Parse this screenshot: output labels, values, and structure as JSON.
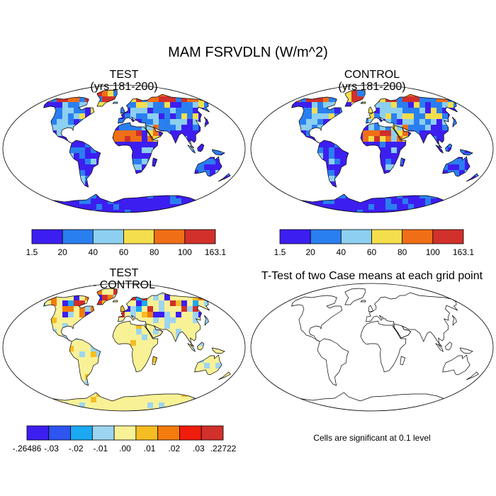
{
  "title": "MAM FSRVDLN (W/m^2)",
  "panels": [
    {
      "id": "test",
      "title": "TEST",
      "subtitle": "(yrs 181-200)"
    },
    {
      "id": "control",
      "title": "CONTROL",
      "subtitle": "(yrs 181-200)"
    },
    {
      "id": "diff",
      "title": "TEST",
      "subtitle": "- CONTROL"
    },
    {
      "id": "ttest",
      "title": "T-Test of two Case means at each grid point",
      "subtitle": ""
    }
  ],
  "colorbar_main": {
    "colors": [
      "#3d1ef0",
      "#2a7ff0",
      "#8ccff0",
      "#f5de4c",
      "#f06f16",
      "#d1302b"
    ],
    "labels": [
      "1.5",
      "20",
      "40",
      "60",
      "80",
      "100",
      "163.1"
    ]
  },
  "colorbar_diff": {
    "colors": [
      "#3d1ef0",
      "#2d55f0",
      "#1aa9f2",
      "#9dd5f0",
      "#f8f196",
      "#f5bd22",
      "#f37c0c",
      "#f01c0c",
      "#d1302b"
    ],
    "labels": [
      "-.26486",
      "-.03",
      "-.02",
      "-.01",
      ".00",
      ".01",
      ".02",
      ".03",
      ".22722"
    ]
  },
  "ttest_note": "Cells are significant at 0.1 level"
}
